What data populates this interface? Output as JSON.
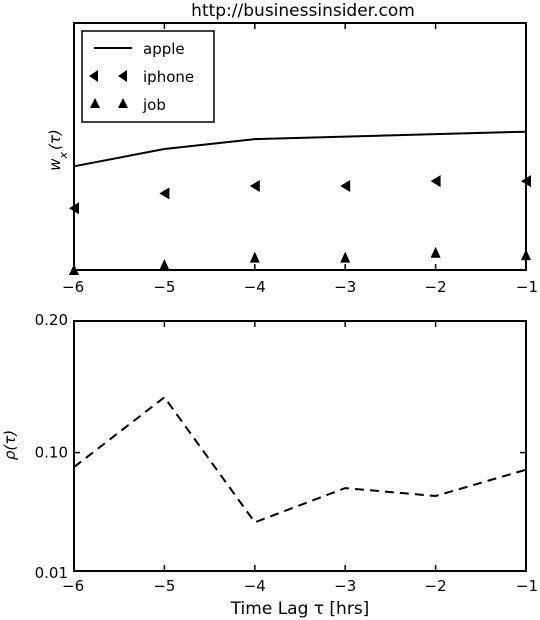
{
  "chart_data": [
    {
      "type": "line",
      "title": "http://businessinsider.com",
      "ylabel": "w_x(τ)",
      "ylabel_parts": {
        "main": "w",
        "sub": "x",
        "arg": "(τ)"
      },
      "xlim": [
        -6,
        -1
      ],
      "ylim": [
        0,
        1
      ],
      "x_ticks": [
        -6,
        -5,
        -4,
        -3,
        -2,
        -1
      ],
      "x_tick_labels": [
        "−6",
        "−5",
        "−4",
        "−3",
        "−2",
        "−1"
      ],
      "y_ticks_visible": false,
      "legend_placement": "top-left",
      "grid": false,
      "series": [
        {
          "name": "apple",
          "style": "line",
          "x": [
            -6,
            -5,
            -4,
            -3,
            -2,
            -1
          ],
          "values": [
            0.42,
            0.49,
            0.53,
            0.54,
            0.55,
            0.56
          ]
        },
        {
          "name": "iphone",
          "style": "marker-triangle-left",
          "x": [
            -6,
            -5,
            -4,
            -3,
            -2,
            -1
          ],
          "values": [
            0.25,
            0.31,
            0.34,
            0.34,
            0.36,
            0.36
          ]
        },
        {
          "name": "job",
          "style": "marker-triangle-up",
          "x": [
            -6,
            -5,
            -4,
            -3,
            -2,
            -1
          ],
          "values": [
            0.0,
            0.02,
            0.05,
            0.05,
            0.07,
            0.06
          ]
        }
      ]
    },
    {
      "type": "line",
      "title": "",
      "ylabel": "ρ(τ)",
      "xlabel": "Time Lag τ [hrs]",
      "xlim": [
        -6,
        -1
      ],
      "ylim": [
        0.01,
        0.2
      ],
      "y_ticks": [
        0.01,
        0.1,
        0.2
      ],
      "y_tick_labels": [
        "0.01",
        "0.10",
        "0.20"
      ],
      "x_ticks": [
        -6,
        -5,
        -4,
        -3,
        -2,
        -1
      ],
      "x_tick_labels": [
        "−6",
        "−5",
        "−4",
        "−3",
        "−2",
        "−1"
      ],
      "grid": false,
      "series": [
        {
          "name": "",
          "style": "dashed",
          "x": [
            -6,
            -5,
            -4,
            -3,
            -2,
            -1
          ],
          "values": [
            0.089,
            0.142,
            0.047,
            0.073,
            0.067,
            0.087
          ]
        }
      ]
    }
  ]
}
